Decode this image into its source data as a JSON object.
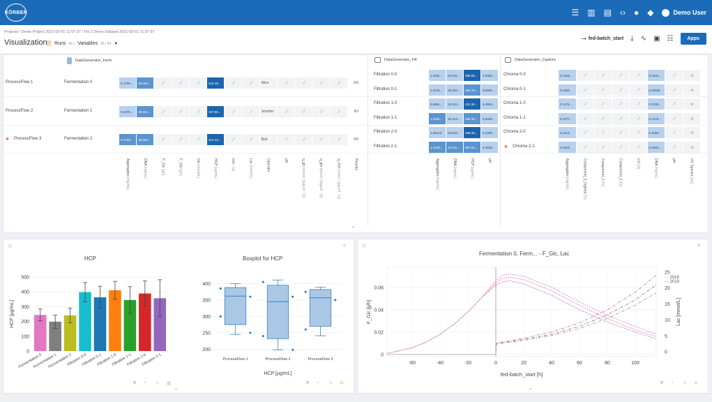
{
  "topbar": {
    "logo": "KÖRBER",
    "user": "Demo User",
    "icons": [
      "list-icon",
      "book-icon",
      "document-icon",
      "code-icon",
      "globe-icon",
      "bell-icon",
      "user-icon"
    ]
  },
  "breadcrumb": "Projects / Demo Project 2021-03-01 11:07:37 / Vis 2 Demo Dataset 2021-03-01 11:07:37",
  "page_title": "Visualization",
  "runs_label": "Runs",
  "runs_value": "ALL",
  "variables_label": "Variables",
  "variables_value": "26 / 64",
  "toolbar": {
    "x_variable": "fed-batch_start",
    "apps_label": "Apps"
  },
  "grid": {
    "ferm_header": "DataGenerator_Ferm",
    "filt_header": "DataGenerator_Filt",
    "capt_header": "DataGenerator_Capture",
    "process_flows": [
      "ProcessFlow 1",
      "ProcessFlow 2",
      "ProcessFlow 3"
    ],
    "ferm_rows": [
      {
        "label": "Fermentation 0",
        "agg": "0.1759...",
        "dna": "49.364...",
        "hcp": "244.46...",
        "operator": "Alice",
        "reactor": "R3"
      },
      {
        "label": "Fermentation 1",
        "agg": "0.1675...",
        "dna": "38.341...",
        "hcp": "197.86...",
        "operator": "Jennifer",
        "reactor": "R3"
      },
      {
        "label": "Fermentation 2",
        "agg": "0.1769...",
        "dna": "48.354...",
        "hcp": "241.12...",
        "operator": "Bob",
        "reactor": "R3"
      }
    ],
    "filt_rows": [
      {
        "label": "Filtration 0-0",
        "v": [
          "1.0281...",
          "29.115...",
          "398.59...",
          "6.5483..."
        ]
      },
      {
        "label": "Filtration 0-1",
        "v": [
          "1.0416...",
          "29.262...",
          "362.76...",
          "6.5800..."
        ]
      },
      {
        "label": "Filtration 1-0",
        "v": [
          "0.9881...",
          "23.321...",
          "411.38...",
          "6.4834..."
        ]
      },
      {
        "label": "Filtration 1-1",
        "v": [
          "1.0431...",
          "25.313...",
          "345.39...",
          "6.5488..."
        ]
      },
      {
        "label": "Filtration 2-0",
        "v": [
          "1.05123",
          "23.643...",
          "389.35...",
          "6.4280..."
        ]
      },
      {
        "label": "Filtration 2-1",
        "v": [
          "1.1018...",
          "26.111...",
          "357.02...",
          "6.4638..."
        ]
      }
    ],
    "capt_rows": [
      {
        "label": "Chroma 0-0",
        "a": "0.1158...",
        "b": "0.1334..."
      },
      {
        "label": "Chroma 0-1",
        "a": "0.1158...",
        "b": "0.12529"
      },
      {
        "label": "Chroma 1-0",
        "a": "0.1176...",
        "b": "0.1228..."
      },
      {
        "label": "Chroma 1-1",
        "a": "0.1077...",
        "b": "0.1278..."
      },
      {
        "label": "Chroma 2-0",
        "a": "0.1113...",
        "b": "0.1158..."
      },
      {
        "label": "Chroma 2-1",
        "a": "0.1163...",
        "b": "0.1383..."
      }
    ],
    "ferm_columns": [
      {
        "name": "Aggregates",
        "unit": "[mg/mL]"
      },
      {
        "name": "DNA",
        "unit": "[ng/mL]"
      },
      {
        "name": "F_Glc",
        "unit": "[g/h]"
      },
      {
        "name": "F_Gln",
        "unit": "[g/h]"
      },
      {
        "name": "Glc",
        "unit": "[mmol/L]"
      },
      {
        "name": "HCP",
        "unit": "[µg/mL]"
      },
      {
        "name": "Ind",
        "unit": "[ -/a]"
      },
      {
        "name": "Lac",
        "unit": "[mmol/L]"
      },
      {
        "name": "Operator",
        "unit": ""
      },
      {
        "name": "pH",
        "unit": ""
      },
      {
        "name": "q_glc",
        "unit": "[mmol / (pgcell · h)]"
      },
      {
        "name": "q_gln",
        "unit": "[mmol / (pgcell · h)]"
      },
      {
        "name": "q_nh4",
        "unit": "[mmol / (pgcell · h)]"
      },
      {
        "name": "Reactor",
        "unit": ""
      }
    ],
    "filt_columns": [
      {
        "name": "Aggregates",
        "unit": "[mg/mL]"
      },
      {
        "name": "DNA",
        "unit": "[ng/mL]"
      },
      {
        "name": "HCP",
        "unit": "[µg/mL]"
      },
      {
        "name": "pH",
        "unit": ""
      }
    ],
    "capt_columns": [
      {
        "name": "Aggregates",
        "unit": "[mg/mL]"
      },
      {
        "name": "Component_0_highest",
        "unit": "[%]"
      },
      {
        "name": "Component_1",
        "unit": "[%]"
      },
      {
        "name": "Component_2",
        "unit": "[%]"
      },
      {
        "name": "CV",
        "unit": "[%]"
      },
      {
        "name": "DNA",
        "unit": "[ng/mL]"
      },
      {
        "name": "pH",
        "unit": ""
      },
      {
        "name": "UV Spectra",
        "unit": "[mu]"
      }
    ]
  },
  "chart_data": [
    {
      "type": "bar",
      "title": "HCP",
      "ylabel": "HCP [µg/mL]",
      "xlabel": "",
      "ylim": [
        0,
        500
      ],
      "yticks": [
        0,
        100,
        200,
        300,
        400,
        500
      ],
      "grid": true,
      "categories": [
        "Fermentation 0",
        "Fermentation 1",
        "Fermentation 2",
        "Filtration 0-0",
        "Filtration 0-1",
        "Filtration 1-0",
        "Filtration 1-1",
        "Filtration 2-0",
        "Filtration 2-1"
      ],
      "values": [
        244,
        198,
        241,
        398,
        363,
        411,
        345,
        389,
        357
      ],
      "errors": [
        40,
        45,
        50,
        65,
        75,
        60,
        90,
        85,
        125
      ],
      "colors": [
        "#e377c2",
        "#7f7f7f",
        "#bcbd22",
        "#17becf",
        "#1f77b4",
        "#ff7f0e",
        "#2ca02c",
        "#d62728",
        "#9467bd"
      ]
    },
    {
      "type": "box",
      "title": "Boxplot for HCP",
      "xlabel": "HCP [µg/mL]",
      "ylabel": "",
      "ylim": [
        190,
        420
      ],
      "yticks": [
        200,
        250,
        300,
        350,
        400
      ],
      "categories": [
        "ProcessFlow 1",
        "ProcessFlow 2",
        "ProcessFlow 3"
      ],
      "boxes": [
        {
          "min": 245,
          "q1": 275,
          "median": 362,
          "q3": 388,
          "max": 400,
          "points": [
            385,
            360,
            300,
            250
          ]
        },
        {
          "min": 198,
          "q1": 232,
          "median": 345,
          "q3": 395,
          "max": 411,
          "points": [
            405,
            360,
            240,
            198
          ]
        },
        {
          "min": 241,
          "q1": 270,
          "median": 357,
          "q3": 382,
          "max": 389,
          "points": [
            375,
            350,
            260
          ]
        }
      ]
    },
    {
      "type": "line",
      "title": "Fermentation 0, Ferm... - F_Glc, Lac",
      "xlabel": "fed-batch_start [h]",
      "ylabel": "F_Glc [g/h]",
      "y2label": "Lac [mmol/L]",
      "xlim": [
        -78,
        115
      ],
      "xticks": [
        -60,
        -40,
        -20,
        0,
        20,
        40,
        60,
        80,
        100
      ],
      "ylim": [
        -0.002,
        0.078
      ],
      "yticks": [
        0,
        0.02,
        0.04,
        0.06
      ],
      "y2lim": [
        -1.5,
        26.5
      ],
      "y2ticks": [
        0,
        5,
        10,
        15,
        20,
        25
      ],
      "legend": [
        "2018",
        "2019"
      ],
      "legend_position": "top-right",
      "series": [
        {
          "axis": "y",
          "color": "#d66bb3",
          "x": [
            -78,
            -70,
            -60,
            -50,
            -40,
            -30,
            -20,
            -10,
            0,
            5,
            10,
            20,
            40,
            60,
            80,
            100,
            115
          ],
          "y": [
            0.001,
            0.003,
            0.006,
            0.011,
            0.018,
            0.027,
            0.038,
            0.051,
            0.066,
            0.071,
            0.072,
            0.07,
            0.06,
            0.047,
            0.035,
            0.025,
            0.018
          ]
        },
        {
          "axis": "y",
          "color": "#d66bb3",
          "x": [
            -78,
            -70,
            -60,
            -50,
            -40,
            -30,
            -20,
            -10,
            0,
            5,
            10,
            20,
            40,
            60,
            80,
            100,
            115
          ],
          "y": [
            0.001,
            0.003,
            0.006,
            0.011,
            0.018,
            0.027,
            0.038,
            0.051,
            0.064,
            0.068,
            0.069,
            0.067,
            0.057,
            0.044,
            0.032,
            0.022,
            0.016
          ]
        },
        {
          "axis": "y",
          "color": "#c9589f",
          "x": [
            -78,
            -70,
            -60,
            -50,
            -40,
            -30,
            -20,
            -10,
            0,
            5,
            10,
            20,
            40,
            60,
            80,
            100,
            115
          ],
          "y": [
            0.001,
            0.003,
            0.006,
            0.011,
            0.018,
            0.027,
            0.038,
            0.051,
            0.062,
            0.065,
            0.066,
            0.063,
            0.053,
            0.04,
            0.029,
            0.02,
            0.014
          ]
        },
        {
          "axis": "y2",
          "color": "#d66bb3",
          "x": [
            0,
            0.5,
            10,
            20,
            40,
            60,
            80,
            100,
            115
          ],
          "y": [
            0,
            2.8,
            3.5,
            4.3,
            6.2,
            9.1,
            13.2,
            18.7,
            24
          ]
        },
        {
          "axis": "y2",
          "color": "#7f7f7f",
          "x": [
            0,
            0.5,
            10,
            20,
            40,
            60,
            80,
            100,
            115
          ],
          "y": [
            0,
            2.6,
            3.2,
            3.9,
            5.5,
            8.0,
            11.6,
            16.3,
            21
          ]
        },
        {
          "axis": "y2",
          "color": "#999999",
          "x": [
            0,
            0.5,
            10,
            20,
            40,
            60,
            80,
            100,
            115
          ],
          "y": [
            0,
            2.5,
            3.0,
            3.6,
            5.1,
            7.3,
            10.5,
            14.6,
            18.5
          ]
        }
      ]
    }
  ]
}
